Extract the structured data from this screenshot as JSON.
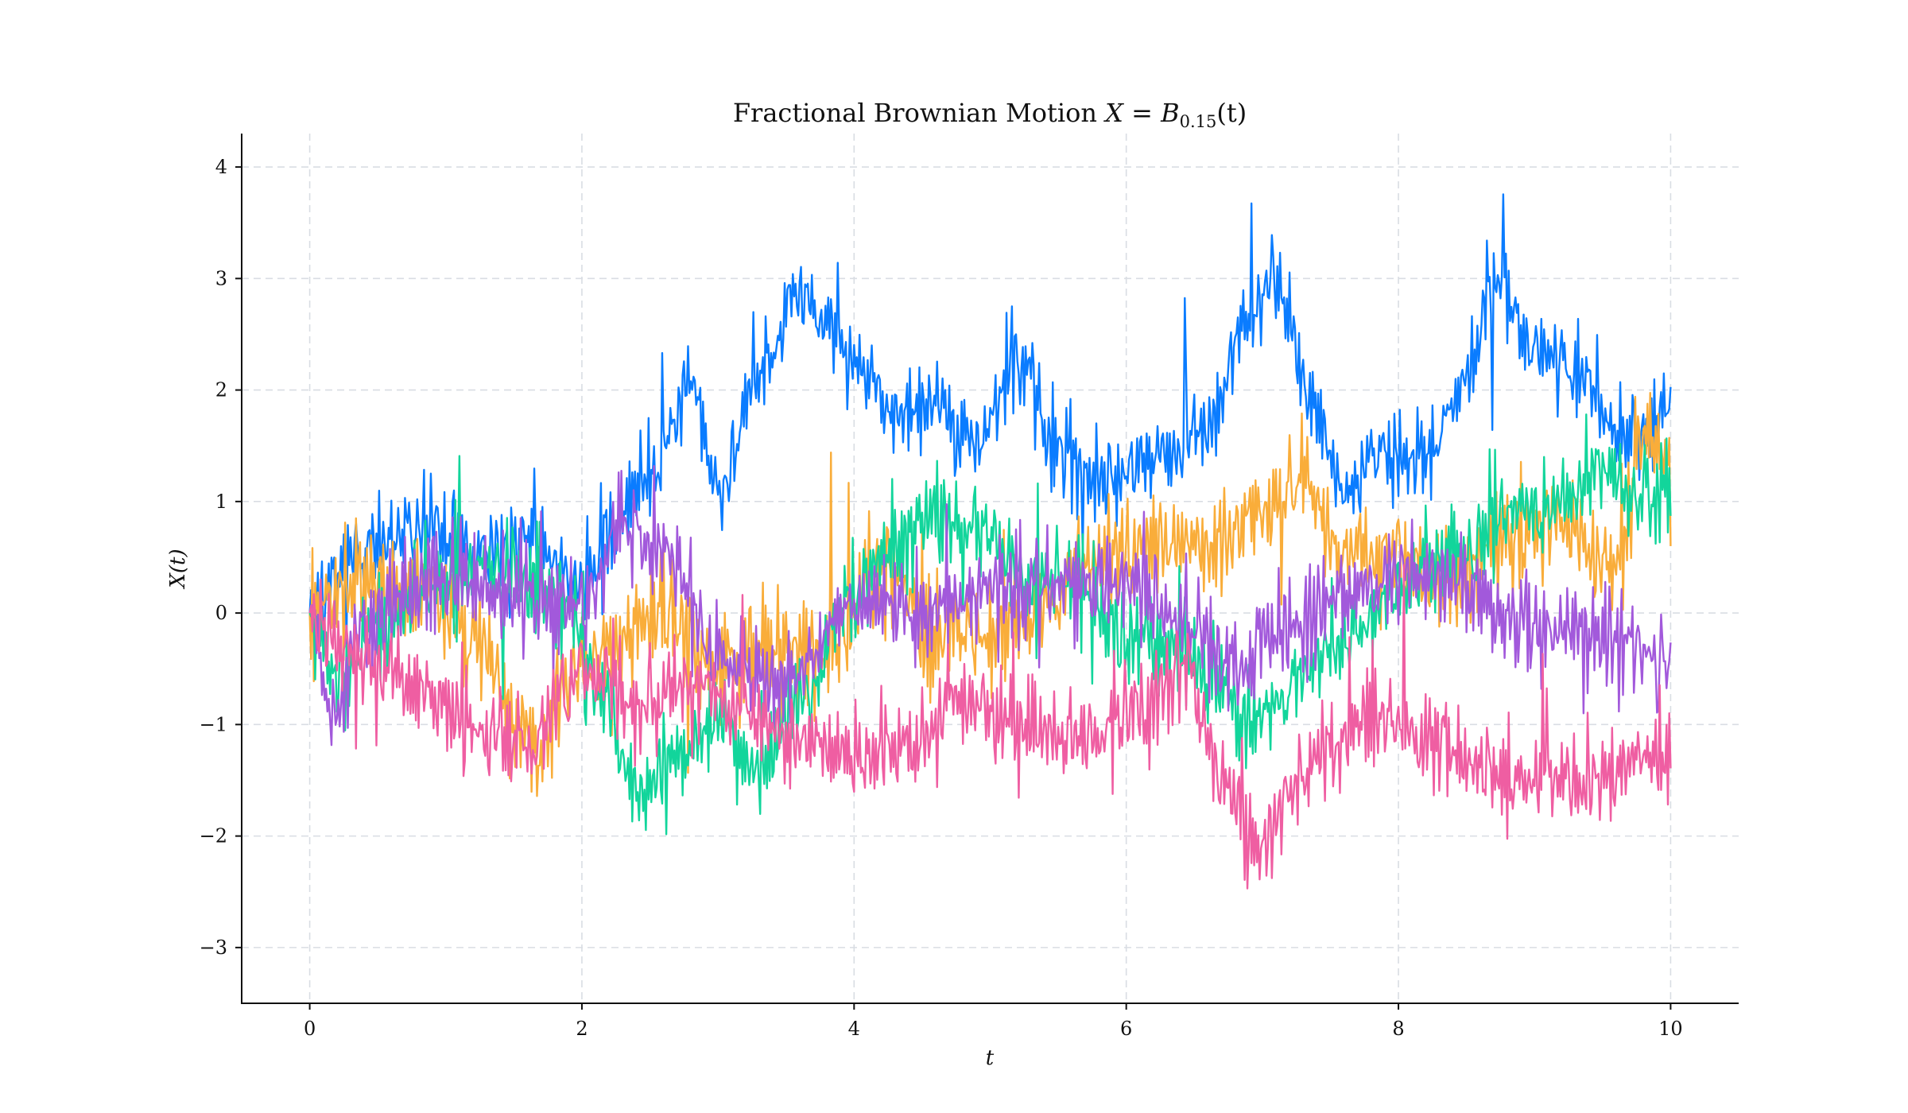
{
  "chart_data": {
    "type": "line",
    "title_main": "Fractional Brownian Motion ",
    "title_math": "X = B",
    "title_sub": "0.15",
    "title_tail": "(t)",
    "xlabel": "t",
    "ylabel": "X(t)",
    "xlim": [
      -0.5,
      10.5
    ],
    "ylim": [
      -3.5,
      4.3
    ],
    "xticks": [
      0,
      2,
      4,
      6,
      8,
      10
    ],
    "xtick_labels": [
      "0",
      "2",
      "4",
      "6",
      "8",
      "10"
    ],
    "yticks": [
      -3,
      -2,
      -1,
      0,
      1,
      2,
      3,
      4
    ],
    "ytick_labels": [
      "−3",
      "−2",
      "−1",
      "0",
      "1",
      "2",
      "3",
      "4"
    ],
    "grid": true,
    "hurst": 0.15,
    "n_points": 1000,
    "t_range": [
      0,
      10
    ],
    "series": [
      {
        "name": "path-blue",
        "color": "#0a7cff",
        "anchors_t": [
          0,
          0.3,
          0.6,
          0.9,
          1.2,
          1.5,
          1.8,
          2.0,
          2.2,
          2.5,
          2.8,
          3.0,
          3.3,
          3.6,
          3.8,
          4.0,
          4.3,
          4.6,
          4.9,
          5.2,
          5.5,
          5.8,
          6.0,
          6.3,
          6.6,
          6.9,
          7.1,
          7.3,
          7.6,
          7.9,
          8.2,
          8.5,
          8.7,
          9.0,
          9.3,
          9.6,
          9.8,
          10.0
        ],
        "anchors_x": [
          0.0,
          0.5,
          0.6,
          0.8,
          0.5,
          0.6,
          0.5,
          0.2,
          0.7,
          1.2,
          2.0,
          1.1,
          2.1,
          2.9,
          2.6,
          2.2,
          1.8,
          1.9,
          1.5,
          2.3,
          1.5,
          1.2,
          1.3,
          1.4,
          1.7,
          2.6,
          3.0,
          2.1,
          1.1,
          1.4,
          1.4,
          2.1,
          3.0,
          2.4,
          2.2,
          1.7,
          1.6,
          1.8
        ],
        "noise": 0.32,
        "seed": 11
      },
      {
        "name": "path-orange",
        "color": "#f9ad3a",
        "anchors_t": [
          0,
          0.4,
          0.8,
          1.2,
          1.5,
          1.7,
          1.9,
          2.2,
          2.6,
          3.0,
          3.4,
          3.8,
          4.2,
          4.6,
          5.0,
          5.4,
          5.8,
          6.2,
          6.6,
          7.0,
          7.3,
          7.6,
          8.0,
          8.4,
          8.8,
          9.2,
          9.6,
          9.8,
          10.0
        ],
        "anchors_x": [
          0.0,
          0.3,
          0.2,
          -0.2,
          -1.0,
          -1.2,
          -0.6,
          -0.3,
          0.0,
          -0.5,
          -0.3,
          -0.4,
          0.4,
          -0.2,
          -0.2,
          0.0,
          0.5,
          0.6,
          0.6,
          0.9,
          1.2,
          0.5,
          0.5,
          0.3,
          0.7,
          0.8,
          0.4,
          1.6,
          1.4
        ],
        "noise": 0.38,
        "seed": 23
      },
      {
        "name": "path-green",
        "color": "#12d59b",
        "anchors_t": [
          0,
          0.2,
          0.6,
          1.0,
          1.3,
          1.6,
          1.9,
          2.1,
          2.4,
          2.7,
          3.0,
          3.3,
          3.6,
          4.0,
          4.3,
          4.6,
          5.0,
          5.3,
          5.6,
          6.0,
          6.3,
          6.6,
          6.9,
          7.1,
          7.4,
          7.7,
          8.0,
          8.4,
          8.8,
          9.2,
          9.5,
          9.8,
          10.0
        ],
        "anchors_x": [
          0.0,
          -0.6,
          0.0,
          0.3,
          0.4,
          0.3,
          0.1,
          -0.6,
          -1.6,
          -1.3,
          -1.0,
          -1.4,
          -0.8,
          0.2,
          0.6,
          0.9,
          0.7,
          0.3,
          0.3,
          -0.2,
          -0.3,
          -0.5,
          -1.0,
          -0.8,
          -0.4,
          -0.2,
          0.2,
          0.5,
          0.9,
          1.0,
          1.3,
          1.0,
          1.1
        ],
        "noise": 0.36,
        "seed": 37
      },
      {
        "name": "path-purple",
        "color": "#a259db",
        "anchors_t": [
          0,
          0.15,
          0.4,
          0.8,
          1.2,
          1.6,
          2.0,
          2.3,
          2.6,
          3.0,
          3.5,
          4.0,
          4.5,
          5.0,
          5.5,
          6.0,
          6.4,
          6.8,
          7.2,
          7.6,
          8.0,
          8.4,
          8.8,
          9.2,
          9.6,
          10.0
        ],
        "anchors_x": [
          0.0,
          -0.9,
          -0.2,
          0.3,
          0.3,
          0.1,
          0.0,
          0.8,
          0.6,
          -0.4,
          -0.6,
          0.1,
          0.0,
          0.2,
          0.2,
          0.3,
          -0.1,
          -0.5,
          -0.1,
          0.2,
          0.4,
          0.3,
          0.0,
          -0.2,
          -0.2,
          -0.5
        ],
        "noise": 0.37,
        "seed": 53
      },
      {
        "name": "path-pink",
        "color": "#ef5ea2",
        "anchors_t": [
          0,
          0.3,
          0.7,
          1.0,
          1.3,
          1.6,
          2.0,
          2.4,
          2.8,
          3.2,
          3.6,
          4.0,
          4.4,
          4.8,
          5.2,
          5.6,
          6.0,
          6.4,
          6.8,
          7.0,
          7.2,
          7.5,
          7.8,
          8.2,
          8.6,
          9.0,
          9.4,
          9.8,
          10.0
        ],
        "anchors_x": [
          0.0,
          -0.4,
          -0.6,
          -0.8,
          -1.1,
          -1.2,
          -0.5,
          -0.8,
          -0.6,
          -0.9,
          -1.1,
          -1.3,
          -1.2,
          -0.8,
          -0.9,
          -1.2,
          -0.9,
          -0.6,
          -1.7,
          -2.1,
          -1.6,
          -1.2,
          -0.9,
          -1.1,
          -1.4,
          -1.5,
          -1.5,
          -1.3,
          -1.2
        ],
        "noise": 0.36,
        "seed": 71
      }
    ]
  }
}
